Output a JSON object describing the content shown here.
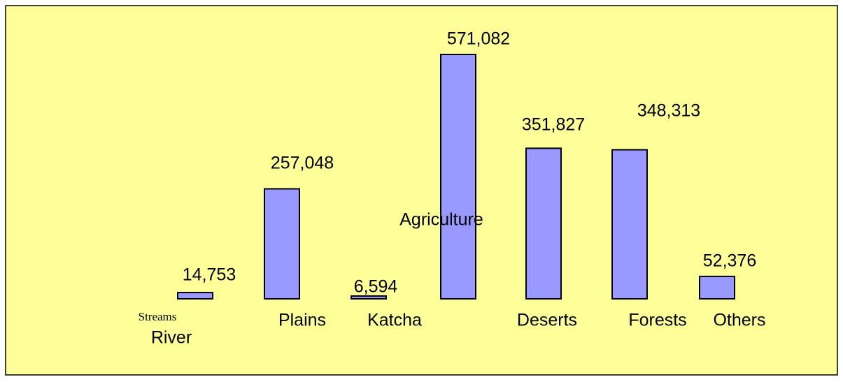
{
  "chart_data": {
    "type": "bar",
    "categories": [
      "River",
      "Plains",
      "Katcha",
      "Agriculture",
      "Deserts",
      "Forests",
      "Others"
    ],
    "values": [
      14753,
      257048,
      6594,
      571082,
      351827,
      348313,
      52376
    ],
    "value_labels": [
      "14,753",
      "257,048",
      "6,594",
      "571,082",
      "351,827",
      "348,313",
      "52,376"
    ],
    "annotations": [
      "Streams"
    ],
    "color": "#9999ff"
  }
}
